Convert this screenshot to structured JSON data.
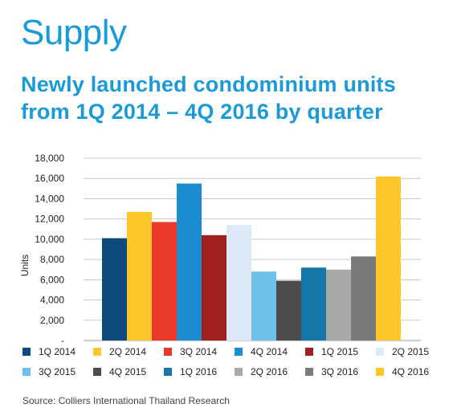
{
  "header": {
    "title": "Supply",
    "subtitle_line1": "Newly launched condominium units",
    "subtitle_line2": "from 1Q 2014 – 4Q 2016 by quarter"
  },
  "source": "Source: Colliers International Thailand Research",
  "chart_data": {
    "type": "bar",
    "title": "",
    "xlabel": "",
    "ylabel": "Units",
    "ylim": [
      0,
      18000
    ],
    "yticks": [
      "-",
      "2,000",
      "4,000",
      "6,000",
      "8,000",
      "10,000",
      "12,000",
      "14,000",
      "16,000",
      "18,000"
    ],
    "grid": true,
    "legend_position": "bottom",
    "categories": [
      "1Q 2014",
      "2Q 2014",
      "3Q 2014",
      "4Q 2014",
      "1Q 2015",
      "2Q 2015",
      "3Q 2015",
      "4Q 2015",
      "1Q 2016",
      "2Q 2016",
      "3Q 2016",
      "4Q 2016"
    ],
    "values": [
      10100,
      12700,
      11700,
      15500,
      10400,
      11400,
      6800,
      5900,
      7200,
      7000,
      8300,
      16200
    ],
    "colors": [
      "#0d4a7d",
      "#fdc629",
      "#e8392b",
      "#1a8ccf",
      "#a01f1f",
      "#dde9f6",
      "#6cc0ea",
      "#4d4d4f",
      "#1576a8",
      "#a8a8a8",
      "#7a7a7a",
      "#fdc629"
    ]
  }
}
